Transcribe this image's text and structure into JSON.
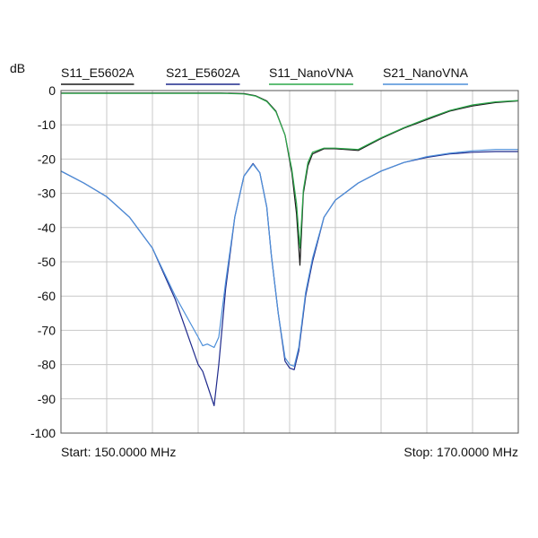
{
  "chart_data": {
    "type": "line",
    "ylabel": "dB",
    "ylim": [
      -100,
      0
    ],
    "yticks": [
      0,
      -10,
      -20,
      -30,
      -40,
      -50,
      -60,
      -70,
      -80,
      -90,
      -100
    ],
    "ytick_labels": [
      "0",
      "-10",
      "-20",
      "-30",
      "-40",
      "-50",
      "-60",
      "-70",
      "-80",
      "-90",
      "-100"
    ],
    "xlim": [
      150,
      170
    ],
    "x_unit": "MHz",
    "x_grid_divisions": 10,
    "grid": true,
    "legend_position": "top",
    "start_label": "Start: 150.0000 MHz",
    "stop_label": "Stop: 170.0000 MHz",
    "series": [
      {
        "name": "S11_E5602A",
        "color": "#1a1a1a",
        "x": [
          150,
          151,
          152,
          153,
          154,
          155,
          156,
          157,
          158,
          158.5,
          159,
          159.4,
          159.8,
          160.1,
          160.3,
          160.45,
          160.6,
          160.8,
          161,
          161.5,
          162,
          163,
          164,
          165,
          166,
          167,
          168,
          169,
          170
        ],
        "y": [
          -0.7,
          -0.7,
          -0.7,
          -0.7,
          -0.7,
          -0.7,
          -0.7,
          -0.7,
          -0.9,
          -1.5,
          -3,
          -6,
          -13,
          -24,
          -36,
          -51,
          -30,
          -22,
          -18.5,
          -17,
          -17,
          -17.5,
          -14,
          -11,
          -8.5,
          -6,
          -4.5,
          -3.5,
          -3
        ]
      },
      {
        "name": "S21_E5602A",
        "color": "#1f2a8c",
        "x": [
          150,
          151,
          152,
          153,
          154,
          155,
          156,
          156.2,
          156.4,
          156.7,
          156.9,
          157.2,
          157.6,
          158,
          158.4,
          158.7,
          159,
          159.2,
          159.5,
          159.8,
          160,
          160.2,
          160.4,
          160.7,
          161,
          161.5,
          162,
          163,
          164,
          165,
          166,
          167,
          168,
          169,
          170
        ],
        "y": [
          -23.5,
          -27,
          -31,
          -37,
          -46,
          -61,
          -80,
          -82,
          -86,
          -92,
          -80,
          -58,
          -37,
          -25,
          -21.3,
          -24,
          -34,
          -48,
          -65,
          -79,
          -81,
          -81.5,
          -76,
          -60,
          -50,
          -37,
          -32,
          -27,
          -23.5,
          -21,
          -19.5,
          -18.5,
          -18,
          -17.8,
          -17.8
        ]
      },
      {
        "name": "S11_NanoVNA",
        "color": "#2ca84a",
        "x": [
          150,
          151,
          152,
          153,
          154,
          155,
          156,
          157,
          158,
          158.5,
          159,
          159.4,
          159.8,
          160.1,
          160.3,
          160.45,
          160.6,
          160.8,
          161,
          161.5,
          162,
          163,
          164,
          165,
          166,
          167,
          168,
          169,
          170
        ],
        "y": [
          -0.8,
          -0.8,
          -0.8,
          -0.8,
          -0.8,
          -0.8,
          -0.8,
          -0.8,
          -1.0,
          -1.6,
          -3.2,
          -6.2,
          -13,
          -23,
          -33,
          -46,
          -29,
          -21,
          -18,
          -16.8,
          -16.8,
          -17.2,
          -13.8,
          -10.8,
          -8.2,
          -5.8,
          -4.2,
          -3.3,
          -2.9
        ]
      },
      {
        "name": "S21_NanoVNA",
        "color": "#4d8fd9",
        "x": [
          150,
          151,
          152,
          153,
          154,
          155,
          156,
          156.2,
          156.4,
          156.7,
          156.9,
          157.2,
          157.6,
          158,
          158.4,
          158.7,
          159,
          159.2,
          159.5,
          159.8,
          160,
          160.2,
          160.4,
          160.7,
          161,
          161.5,
          162,
          163,
          164,
          165,
          166,
          167,
          168,
          169,
          170
        ],
        "y": [
          -23.5,
          -27,
          -31,
          -37,
          -46,
          -60,
          -72,
          -74.5,
          -74,
          -75,
          -72,
          -56,
          -37,
          -25,
          -21.5,
          -24,
          -34,
          -48,
          -65,
          -78,
          -80,
          -80.5,
          -75,
          -59,
          -49,
          -37,
          -32,
          -27,
          -23.5,
          -21,
          -19.3,
          -18.3,
          -17.6,
          -17.2,
          -17.2
        ]
      }
    ]
  }
}
